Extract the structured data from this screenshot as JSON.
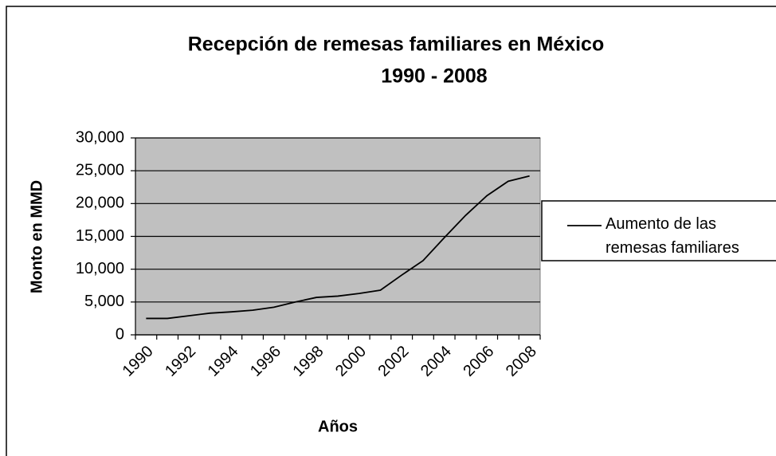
{
  "chart_data": {
    "type": "line",
    "title": "Recepción de remesas familiares en México",
    "subtitle": "1990 - 2008",
    "x_label": "Años",
    "y_label": "Monto en MMD",
    "categories": [
      "1990",
      null,
      "1992",
      null,
      "1994",
      null,
      "1996",
      null,
      "1998",
      null,
      "2000",
      null,
      "2002",
      null,
      "2004",
      null,
      "2006",
      null,
      "2008"
    ],
    "series": [
      {
        "name": "Aumento de las remesas familiares",
        "color": "#000000",
        "values": [
          2500,
          2500,
          2900,
          3300,
          3500,
          3750,
          4200,
          5000,
          5700,
          5900,
          6300,
          6800,
          9100,
          11300,
          14800,
          18200,
          21200,
          23400,
          24200
        ]
      }
    ],
    "ylim": [
      0,
      30000
    ],
    "yticks": [
      0,
      {
        "value": 5000,
        "label": "5,000"
      },
      {
        "value": 10000,
        "label": "10,000"
      },
      {
        "value": 15000,
        "label": "15,000"
      },
      {
        "value": 20000,
        "label": "20,000"
      },
      {
        "value": 25000,
        "label": "25,000"
      },
      {
        "value": 30000,
        "label": "30,000"
      }
    ],
    "grid": true,
    "legend": "right",
    "plot_background": "#c0c0c0"
  }
}
